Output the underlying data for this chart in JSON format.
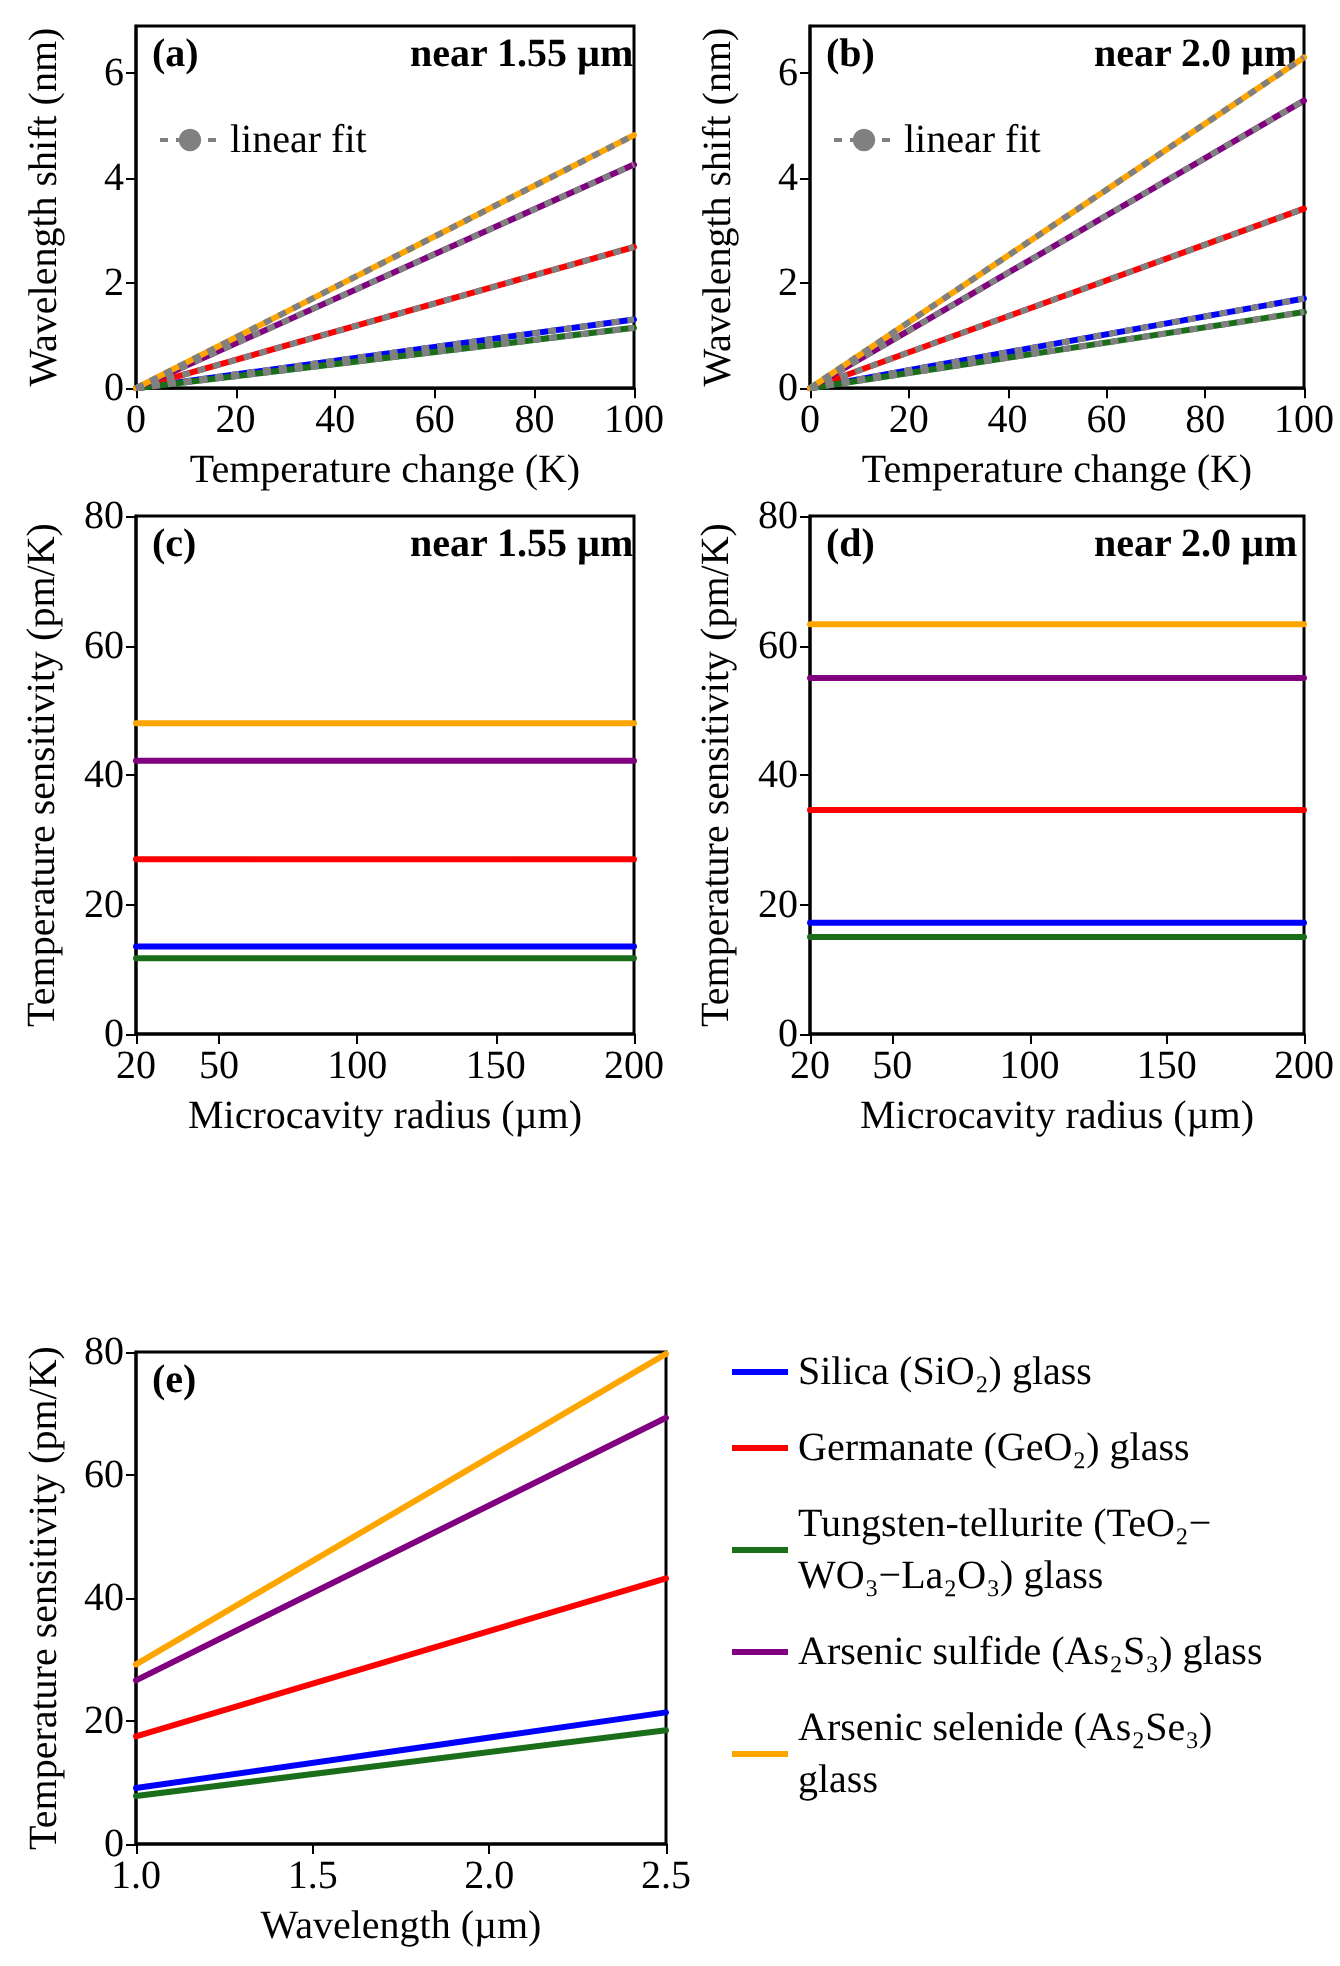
{
  "chart_data": [
    {
      "type": "line",
      "xlabel": "Temperature change (K)",
      "ylabel": "Wavelength shift (nm)",
      "annotations": [
        "(a)",
        "near 1.55 µm"
      ],
      "x": [
        0,
        100
      ],
      "xlim": [
        0,
        100
      ],
      "xticks": [
        0,
        20,
        40,
        60,
        80,
        100
      ],
      "ylim": [
        0,
        6.9
      ],
      "yticks": [
        0,
        2,
        4,
        6
      ],
      "legend": "top left",
      "marker": "none",
      "grid": false,
      "series": [
        {
          "color": "#0000ff",
          "values": [
            0,
            1.31
          ]
        },
        {
          "color": "#ff0000",
          "values": [
            0,
            2.69
          ]
        },
        {
          "color": "#1a6e1a",
          "values": [
            0,
            1.15
          ]
        },
        {
          "color": "#800080",
          "values": [
            0,
            4.26
          ]
        },
        {
          "color": "#ffa500",
          "values": [
            0,
            4.82
          ]
        },
        {
          "name": "linear fit",
          "color": "#808080",
          "line_style": "dotted",
          "values": [
            0,
            1.31
          ]
        },
        {
          "color": "#808080",
          "line_style": "dotted",
          "values": [
            0,
            2.69
          ]
        },
        {
          "color": "#808080",
          "line_style": "dotted",
          "values": [
            0,
            1.15
          ]
        },
        {
          "color": "#808080",
          "line_style": "dotted",
          "values": [
            0,
            4.26
          ]
        },
        {
          "color": "#808080",
          "line_style": "dotted",
          "values": [
            0,
            4.82
          ]
        }
      ]
    },
    {
      "type": "line",
      "xlabel": "Temperature change (K)",
      "ylabel": "Wavelength shift (nm)",
      "annotations": [
        "(b)",
        "near 2.0 µm"
      ],
      "x": [
        0,
        100
      ],
      "xlim": [
        0,
        100
      ],
      "xticks": [
        0,
        20,
        40,
        60,
        80,
        100
      ],
      "ylim": [
        0,
        6.9
      ],
      "yticks": [
        0,
        2,
        4,
        6
      ],
      "legend": "top left",
      "marker": "none",
      "grid": false,
      "series": [
        {
          "color": "#0000ff",
          "values": [
            0,
            1.71
          ]
        },
        {
          "color": "#ff0000",
          "values": [
            0,
            3.42
          ]
        },
        {
          "color": "#1a6e1a",
          "values": [
            0,
            1.45
          ]
        },
        {
          "color": "#800080",
          "values": [
            0,
            5.48
          ]
        },
        {
          "color": "#ffa500",
          "values": [
            0,
            6.3
          ]
        },
        {
          "name": "linear fit",
          "color": "#808080",
          "line_style": "dotted",
          "values": [
            0,
            1.71
          ]
        },
        {
          "color": "#808080",
          "line_style": "dotted",
          "values": [
            0,
            3.42
          ]
        },
        {
          "color": "#808080",
          "line_style": "dotted",
          "values": [
            0,
            1.45
          ]
        },
        {
          "color": "#808080",
          "line_style": "dotted",
          "values": [
            0,
            5.48
          ]
        },
        {
          "color": "#808080",
          "line_style": "dotted",
          "values": [
            0,
            6.3
          ]
        }
      ]
    },
    {
      "type": "line",
      "xlabel": "Microcavity radius (µm)",
      "ylabel": "Temperature sensitivity (pm/K)",
      "annotations": [
        "(c)",
        "near 1.55 µm"
      ],
      "x": [
        20,
        200
      ],
      "xlim": [
        20,
        200
      ],
      "xticks": [
        20,
        50,
        100,
        150,
        200
      ],
      "ylim": [
        0,
        80
      ],
      "yticks": [
        0,
        20,
        40,
        60,
        80
      ],
      "marker": "none",
      "grid": false,
      "series": [
        {
          "color": "#0000ff",
          "values": [
            13.5,
            13.5
          ]
        },
        {
          "color": "#ff0000",
          "values": [
            27,
            27
          ]
        },
        {
          "color": "#1a6e1a",
          "values": [
            11.7,
            11.7
          ]
        },
        {
          "color": "#800080",
          "values": [
            42.2,
            42.2
          ]
        },
        {
          "color": "#ffa500",
          "values": [
            48,
            48
          ]
        }
      ]
    },
    {
      "type": "line",
      "xlabel": "Microcavity radius (µm)",
      "ylabel": "Temperature sensitivity (pm/K)",
      "annotations": [
        "(d)",
        "near 2.0 µm"
      ],
      "x": [
        20,
        200
      ],
      "xlim": [
        20,
        200
      ],
      "xticks": [
        20,
        50,
        100,
        150,
        200
      ],
      "ylim": [
        0,
        80
      ],
      "yticks": [
        0,
        20,
        40,
        60,
        80
      ],
      "marker": "none",
      "grid": false,
      "series": [
        {
          "color": "#0000ff",
          "values": [
            17.2,
            17.2
          ]
        },
        {
          "color": "#ff0000",
          "values": [
            34.6,
            34.6
          ]
        },
        {
          "color": "#1a6e1a",
          "values": [
            15,
            15
          ]
        },
        {
          "color": "#800080",
          "values": [
            55,
            55
          ]
        },
        {
          "color": "#ffa500",
          "values": [
            63.3,
            63.3
          ]
        }
      ]
    },
    {
      "type": "line",
      "xlabel": "Wavelength (µm)",
      "ylabel": "Temperature sensitivity (pm/K)",
      "annotations": [
        "(e)"
      ],
      "x": [
        1.0,
        2.5
      ],
      "xlim": [
        1.0,
        2.5
      ],
      "xticks": [
        {
          "value": 1,
          "label": "1.0"
        },
        1.5,
        {
          "value": 2,
          "label": "2.0"
        },
        2.5
      ],
      "ylim": [
        0,
        80
      ],
      "yticks": [
        0,
        20,
        40,
        60,
        80
      ],
      "legend": "right",
      "marker": "none",
      "grid": false,
      "series": [
        {
          "name": "Silica (SiO₂) glass",
          "color": "#0000ff",
          "values": [
            9.1,
            21.4
          ]
        },
        {
          "name": "Germanate (GeO₂) glass",
          "color": "#ff0000",
          "values": [
            17.5,
            43.2
          ]
        },
        {
          "name": "Tungsten-tellurite (TeO₂−WO₃−La₂O₃) glass",
          "color": "#1a6e1a",
          "values": [
            7.8,
            18.5
          ]
        },
        {
          "name": "Arsenic sulfide (As₂S₃) glass",
          "color": "#800080",
          "values": [
            26.6,
            69.3
          ]
        },
        {
          "name": "Arsenic selenide (As₂Se₃) glass",
          "color": "#ffa500",
          "values": [
            29.2,
            79.7
          ]
        }
      ]
    }
  ]
}
